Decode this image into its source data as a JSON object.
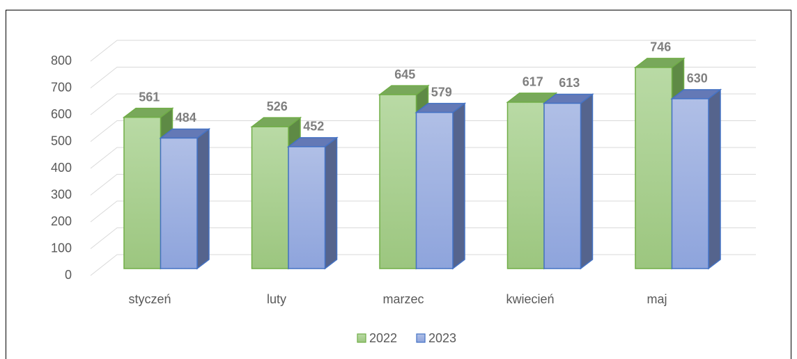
{
  "chart_data": {
    "type": "bar3d",
    "categories": [
      "styczeń",
      "luty",
      "marzec",
      "kwiecień",
      "maj"
    ],
    "series": [
      {
        "name": "2022",
        "color": "#70ad47",
        "values": [
          561,
          526,
          645,
          617,
          746
        ]
      },
      {
        "name": "2023",
        "color": "#4472c4",
        "values": [
          484,
          452,
          579,
          613,
          630
        ]
      }
    ],
    "ylim": [
      0,
      800
    ],
    "yticks": [
      0,
      100,
      200,
      300,
      400,
      500,
      600,
      700,
      800
    ],
    "grid": true,
    "legend": "bottom"
  }
}
